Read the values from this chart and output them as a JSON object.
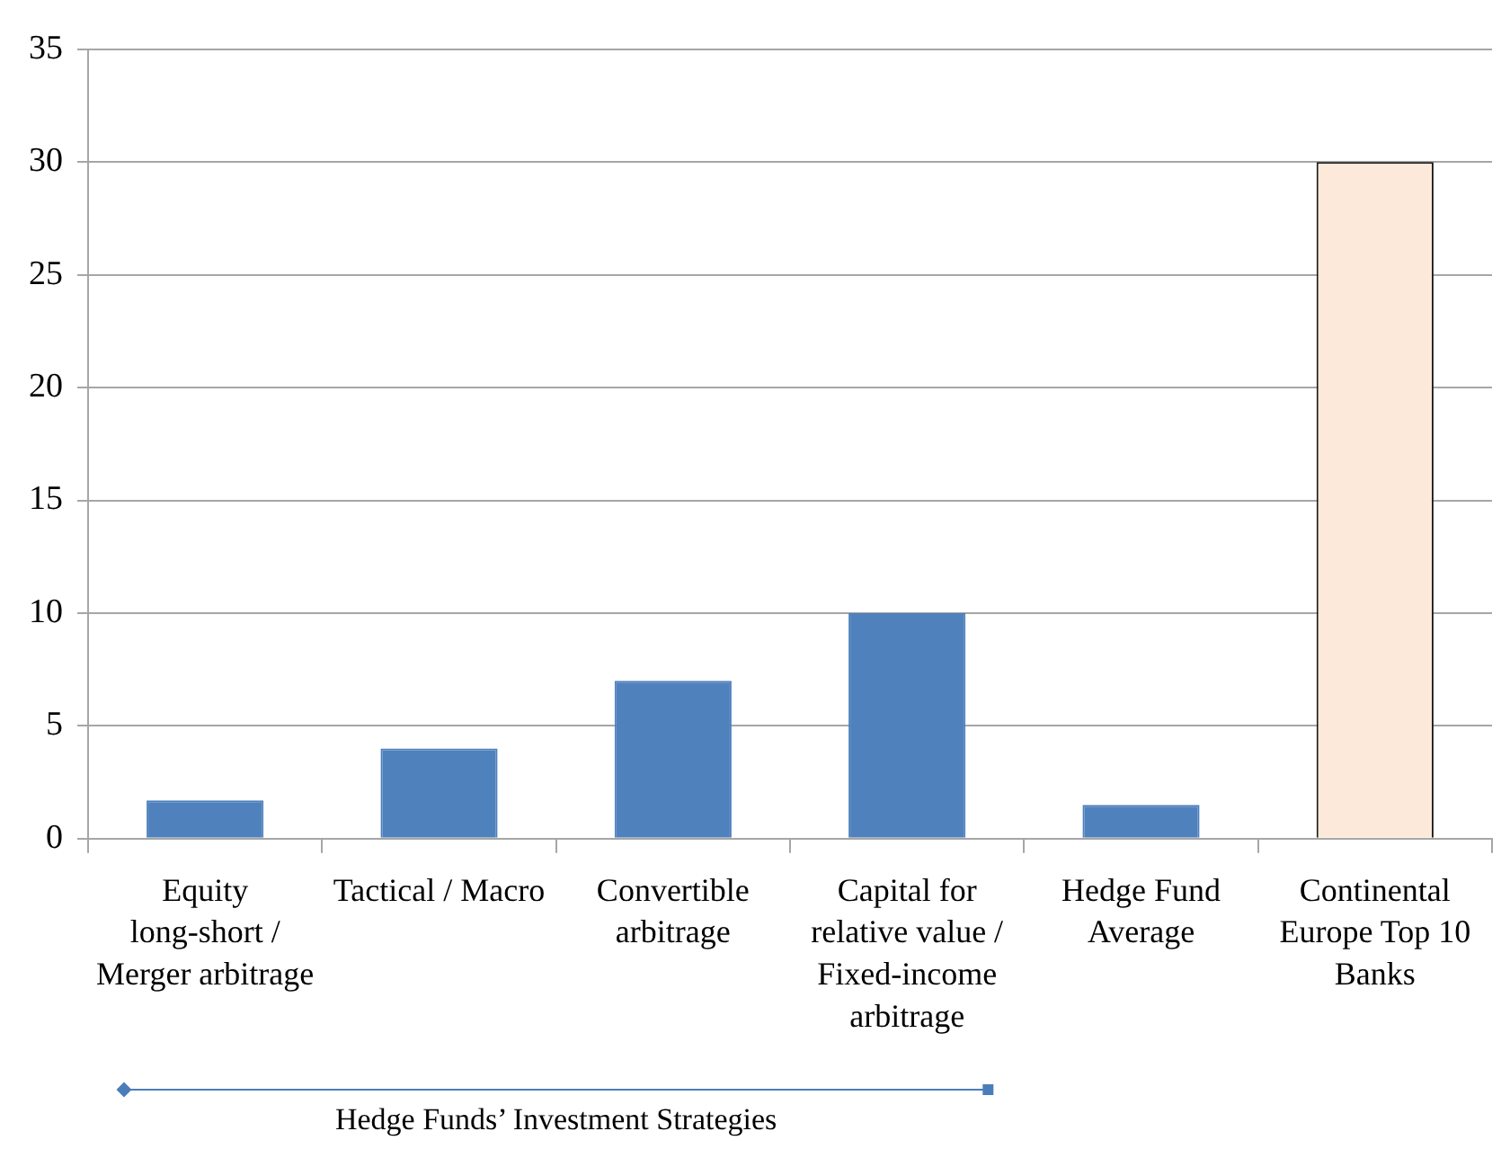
{
  "chart_data": {
    "type": "bar",
    "categories": [
      "Equity long-short / Merger arbitrage",
      "Tactical / Macro",
      "Convertible arbitrage",
      "Capital for relative value / Fixed-income arbitrage",
      "Hedge Fund Average",
      "Continental Europe Top 10 Banks"
    ],
    "values": [
      1.7,
      4,
      7,
      10,
      1.5,
      30
    ],
    "colors": [
      "#4f81bd",
      "#4f81bd",
      "#4f81bd",
      "#4f81bd",
      "#4f81bd",
      "#fde9d9"
    ],
    "ylim": [
      0,
      35
    ],
    "yticks": [
      0,
      5,
      10,
      15,
      20,
      25,
      30,
      35
    ],
    "grid": "y",
    "legend": false,
    "annotations": [
      "Hedge Funds’ Investment Strategies"
    ]
  }
}
